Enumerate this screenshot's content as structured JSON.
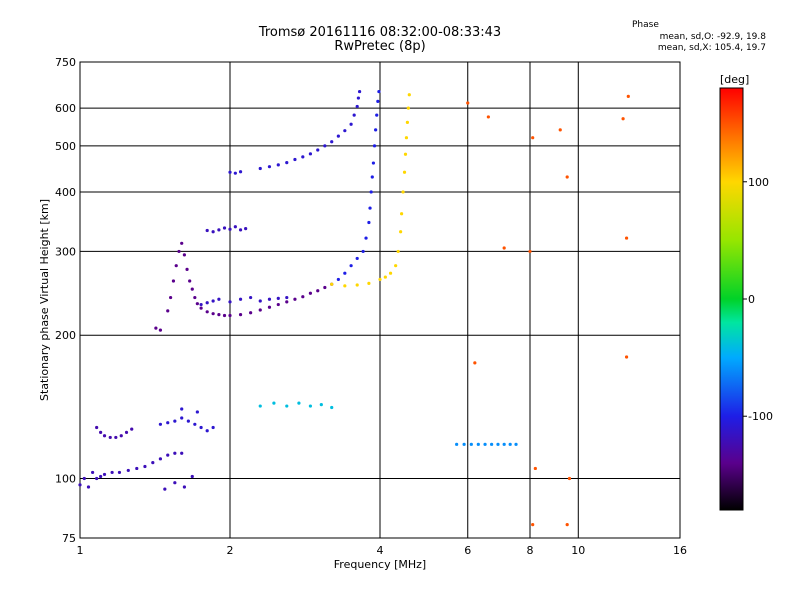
{
  "chart_data": {
    "type": "scatter",
    "title": "Tromsø 20161116 08:32:00-08:33:43",
    "subtitle": "RwPretec (8p)",
    "phase_info": {
      "heading": "Phase",
      "line1": "mean, sd,O: -92.9, 19.8",
      "line2": "mean, sd,X: 105.4, 19.7"
    },
    "xlabel": "Frequency [MHz]",
    "ylabel": "Stationary phase Virtual Height [km]",
    "x_scale": "log",
    "y_scale": "log",
    "xlim": [
      1,
      16
    ],
    "ylim": [
      75,
      750
    ],
    "x_ticks": [
      1,
      2,
      4,
      6,
      8,
      10,
      16
    ],
    "y_ticks": [
      75,
      100,
      200,
      300,
      400,
      500,
      600,
      750
    ],
    "grid": true,
    "colorbar": {
      "label": "[deg]",
      "ticks": [
        100,
        0,
        -100
      ],
      "range": [
        -180,
        180
      ],
      "placement": "right"
    },
    "series": [
      {
        "points": [
          [
            1.0,
            97
          ],
          [
            1.02,
            100
          ],
          [
            1.04,
            96
          ],
          [
            1.06,
            103
          ],
          [
            1.08,
            100
          ],
          [
            1.1,
            101
          ],
          [
            1.12,
            102
          ],
          [
            1.16,
            103
          ],
          [
            1.2,
            103
          ],
          [
            1.25,
            104
          ],
          [
            1.3,
            105
          ],
          [
            1.35,
            106
          ],
          [
            1.4,
            108
          ],
          [
            1.45,
            110
          ],
          [
            1.5,
            112
          ],
          [
            1.55,
            113
          ],
          [
            1.6,
            113
          ],
          [
            1.48,
            95
          ],
          [
            1.55,
            98
          ],
          [
            1.62,
            96
          ],
          [
            1.68,
            101
          ]
        ],
        "phase": -120
      },
      {
        "points": [
          [
            1.08,
            128
          ],
          [
            1.1,
            125
          ],
          [
            1.12,
            123
          ],
          [
            1.15,
            122
          ],
          [
            1.18,
            122
          ],
          [
            1.21,
            123
          ],
          [
            1.24,
            125
          ],
          [
            1.27,
            127
          ]
        ],
        "phase": -125
      },
      {
        "points": [
          [
            1.45,
            130
          ],
          [
            1.5,
            131
          ],
          [
            1.55,
            132
          ],
          [
            1.6,
            134
          ],
          [
            1.65,
            132
          ],
          [
            1.7,
            130
          ],
          [
            1.75,
            128
          ],
          [
            1.8,
            126
          ],
          [
            1.85,
            128
          ],
          [
            1.6,
            140
          ],
          [
            1.72,
            138
          ]
        ],
        "phase": -110
      },
      {
        "points": [
          [
            1.42,
            207
          ],
          [
            1.45,
            205
          ],
          [
            1.5,
            225
          ],
          [
            1.52,
            240
          ],
          [
            1.54,
            260
          ],
          [
            1.56,
            280
          ],
          [
            1.58,
            300
          ],
          [
            1.6,
            312
          ],
          [
            1.62,
            295
          ],
          [
            1.64,
            275
          ],
          [
            1.66,
            260
          ],
          [
            1.68,
            250
          ],
          [
            1.7,
            240
          ],
          [
            1.72,
            233
          ],
          [
            1.75,
            228
          ],
          [
            1.8,
            224
          ],
          [
            1.85,
            222
          ],
          [
            1.9,
            221
          ],
          [
            1.95,
            220
          ],
          [
            2.0,
            220
          ],
          [
            2.1,
            221
          ],
          [
            2.2,
            223
          ],
          [
            2.3,
            226
          ],
          [
            2.4,
            229
          ],
          [
            2.5,
            232
          ],
          [
            2.6,
            235
          ],
          [
            2.7,
            238
          ],
          [
            2.8,
            241
          ],
          [
            2.9,
            245
          ],
          [
            3.0,
            248
          ],
          [
            3.1,
            252
          ],
          [
            3.2,
            256
          ]
        ],
        "phase": -140
      },
      {
        "points": [
          [
            1.75,
            232
          ],
          [
            1.8,
            234
          ],
          [
            1.85,
            236
          ],
          [
            1.9,
            238
          ],
          [
            2.0,
            235
          ],
          [
            2.1,
            238
          ],
          [
            2.2,
            240
          ],
          [
            2.3,
            236
          ],
          [
            2.4,
            238
          ],
          [
            2.5,
            239
          ],
          [
            2.6,
            240
          ]
        ],
        "phase": -115
      },
      {
        "points": [
          [
            1.8,
            332
          ],
          [
            1.85,
            330
          ],
          [
            1.9,
            333
          ],
          [
            1.95,
            336
          ],
          [
            2.0,
            334
          ],
          [
            2.05,
            338
          ],
          [
            2.1,
            333
          ],
          [
            2.15,
            335
          ]
        ],
        "phase": -118
      },
      {
        "points": [
          [
            2.0,
            440
          ],
          [
            2.05,
            438
          ],
          [
            2.1,
            441
          ],
          [
            2.3,
            448
          ],
          [
            2.4,
            452
          ],
          [
            2.5,
            456
          ],
          [
            2.6,
            461
          ],
          [
            2.7,
            468
          ],
          [
            2.8,
            474
          ],
          [
            2.9,
            481
          ],
          [
            3.0,
            490
          ],
          [
            3.1,
            500
          ],
          [
            3.2,
            510
          ],
          [
            3.3,
            524
          ],
          [
            3.4,
            538
          ],
          [
            3.5,
            555
          ],
          [
            3.55,
            580
          ],
          [
            3.6,
            605
          ],
          [
            3.62,
            630
          ],
          [
            3.64,
            650
          ]
        ],
        "phase": -110
      },
      {
        "points": [
          [
            3.3,
            262
          ],
          [
            3.4,
            270
          ],
          [
            3.5,
            280
          ],
          [
            3.6,
            290
          ],
          [
            3.7,
            300
          ],
          [
            3.75,
            320
          ],
          [
            3.8,
            345
          ],
          [
            3.82,
            370
          ],
          [
            3.84,
            400
          ],
          [
            3.86,
            430
          ],
          [
            3.88,
            460
          ],
          [
            3.9,
            500
          ],
          [
            3.92,
            540
          ],
          [
            3.94,
            580
          ],
          [
            3.96,
            620
          ],
          [
            3.98,
            650
          ]
        ],
        "phase": -100
      },
      {
        "points": [
          [
            3.2,
            256
          ],
          [
            3.4,
            254
          ],
          [
            3.6,
            255
          ],
          [
            3.8,
            257
          ],
          [
            4.0,
            262
          ],
          [
            4.1,
            265
          ],
          [
            4.2,
            270
          ],
          [
            4.3,
            280
          ],
          [
            4.35,
            300
          ],
          [
            4.4,
            330
          ],
          [
            4.42,
            360
          ],
          [
            4.45,
            400
          ],
          [
            4.48,
            440
          ],
          [
            4.5,
            480
          ],
          [
            4.52,
            520
          ],
          [
            4.54,
            560
          ],
          [
            4.56,
            600
          ],
          [
            4.58,
            640
          ]
        ],
        "phase": 100
      },
      {
        "points": [
          [
            5.7,
            118
          ],
          [
            5.9,
            118
          ],
          [
            6.1,
            118
          ],
          [
            6.3,
            118
          ],
          [
            6.5,
            118
          ],
          [
            6.7,
            118
          ],
          [
            6.9,
            118
          ],
          [
            7.1,
            118
          ],
          [
            7.3,
            118
          ],
          [
            7.5,
            118
          ]
        ],
        "phase": -60
      },
      {
        "points": [
          [
            2.3,
            142
          ],
          [
            2.45,
            144
          ],
          [
            2.6,
            142
          ],
          [
            2.75,
            144
          ],
          [
            2.9,
            142
          ],
          [
            3.05,
            143
          ],
          [
            3.2,
            141
          ]
        ],
        "phase": -40
      },
      {
        "points": [
          [
            6.0,
            615
          ],
          [
            6.6,
            575
          ],
          [
            8.1,
            520
          ],
          [
            9.2,
            540
          ],
          [
            12.3,
            570
          ],
          [
            12.6,
            635
          ],
          [
            9.5,
            430
          ],
          [
            12.5,
            320
          ],
          [
            6.2,
            175
          ],
          [
            7.1,
            305
          ],
          [
            8.0,
            300
          ],
          [
            8.2,
            105
          ],
          [
            9.6,
            100
          ],
          [
            12.5,
            180
          ],
          [
            9.5,
            80
          ],
          [
            8.1,
            80
          ]
        ],
        "phase": 150
      }
    ]
  }
}
